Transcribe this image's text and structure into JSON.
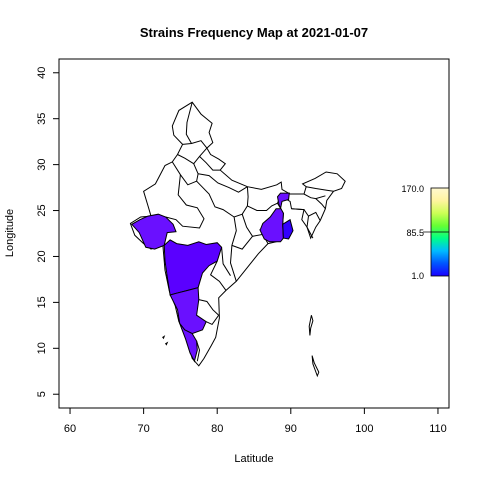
{
  "title": "Strains Frequency Map at  2021-01-07",
  "x_axis": {
    "label": "Latitude",
    "ticks": [
      60,
      70,
      80,
      90,
      100,
      110
    ],
    "range": [
      58.5,
      111.5
    ]
  },
  "y_axis": {
    "label": "Longitude",
    "ticks": [
      5,
      10,
      15,
      20,
      25,
      30,
      35,
      40
    ],
    "range": [
      3.5,
      41.5
    ]
  },
  "legend": {
    "tick_labels": [
      "170.0",
      "85.5",
      "1.0"
    ],
    "min": 1.0,
    "max": 170.0,
    "mid": 85.5,
    "placement": "right",
    "colors": [
      "#1a00ff",
      "#0055ff",
      "#00bbff",
      "#00ff88",
      "#66ff33",
      "#ccff55",
      "#fff4a0",
      "#fff8d0"
    ]
  },
  "colors": {
    "state_high": "#5a00ff",
    "state_mid": "#6a10ff",
    "state_low": "#3300ff",
    "state_empty": "#ffffff",
    "outline": "#000000"
  },
  "chart_data": {
    "type": "map",
    "title": "Strains Frequency Map at  2021-01-07",
    "xlabel": "Latitude",
    "ylabel": "Longitude",
    "xlim": [
      58.5,
      111.5
    ],
    "ylim": [
      3.5,
      41.5
    ],
    "colorbar_range": [
      1.0,
      170.0
    ],
    "regions": [
      {
        "value": 12,
        "polygon": [
          [
            68.4,
            23.5
          ],
          [
            69.4,
            22.6
          ],
          [
            70.3,
            21.0
          ],
          [
            71.5,
            20.8
          ],
          [
            72.8,
            21.2
          ],
          [
            73.2,
            22.6
          ],
          [
            74.4,
            22.7
          ],
          [
            74.0,
            23.5
          ],
          [
            73.0,
            24.3
          ],
          [
            72.0,
            24.6
          ],
          [
            70.6,
            24.4
          ],
          [
            69.5,
            24.0
          ]
        ]
      },
      {
        "value": 14,
        "polygon": [
          [
            72.8,
            21.2
          ],
          [
            73.6,
            21.8
          ],
          [
            74.5,
            21.4
          ],
          [
            76.0,
            21.2
          ],
          [
            77.5,
            21.6
          ],
          [
            78.5,
            21.3
          ],
          [
            80.0,
            21.5
          ],
          [
            80.6,
            21.0
          ],
          [
            80.0,
            19.5
          ],
          [
            78.9,
            19.0
          ],
          [
            78.0,
            18.2
          ],
          [
            77.4,
            16.6
          ],
          [
            76.0,
            16.3
          ],
          [
            74.5,
            16.0
          ],
          [
            73.6,
            15.8
          ],
          [
            73.2,
            17.8
          ],
          [
            72.9,
            19.5
          ]
        ]
      },
      {
        "value": 10,
        "polygon": [
          [
            73.6,
            15.8
          ],
          [
            74.5,
            16.0
          ],
          [
            76.0,
            16.3
          ],
          [
            77.4,
            16.6
          ],
          [
            77.5,
            15.3
          ],
          [
            77.2,
            13.6
          ],
          [
            78.5,
            12.9
          ],
          [
            78.0,
            12.0
          ],
          [
            76.6,
            11.6
          ],
          [
            75.6,
            12.0
          ],
          [
            74.9,
            12.7
          ],
          [
            74.6,
            14.2
          ]
        ]
      },
      {
        "value": 9,
        "polygon": [
          [
            74.9,
            12.7
          ],
          [
            75.6,
            12.0
          ],
          [
            76.6,
            11.6
          ],
          [
            77.2,
            10.8
          ],
          [
            77.3,
            9.8
          ],
          [
            76.9,
            8.6
          ],
          [
            76.3,
            9.5
          ],
          [
            75.7,
            11.0
          ]
        ]
      },
      {
        "value": 11,
        "polygon": [
          [
            85.8,
            22.9
          ],
          [
            86.4,
            21.9
          ],
          [
            87.1,
            21.6
          ],
          [
            88.0,
            21.6
          ],
          [
            88.6,
            21.6
          ],
          [
            89.0,
            22.0
          ],
          [
            88.9,
            23.5
          ],
          [
            89.0,
            24.7
          ],
          [
            88.4,
            25.6
          ],
          [
            88.2,
            26.5
          ],
          [
            88.6,
            26.9
          ],
          [
            89.8,
            26.9
          ],
          [
            89.7,
            26.2
          ],
          [
            88.8,
            26.0
          ],
          [
            88.6,
            25.2
          ],
          [
            88.0,
            25.2
          ],
          [
            87.2,
            24.3
          ],
          [
            86.2,
            23.6
          ],
          [
            85.9,
            23.0
          ]
        ]
      },
      {
        "value": 13,
        "polygon": [
          [
            89.7,
            21.9
          ],
          [
            90.3,
            22.8
          ],
          [
            89.9,
            24.0
          ],
          [
            88.9,
            23.5
          ],
          [
            89.0,
            22.0
          ]
        ]
      }
    ]
  }
}
